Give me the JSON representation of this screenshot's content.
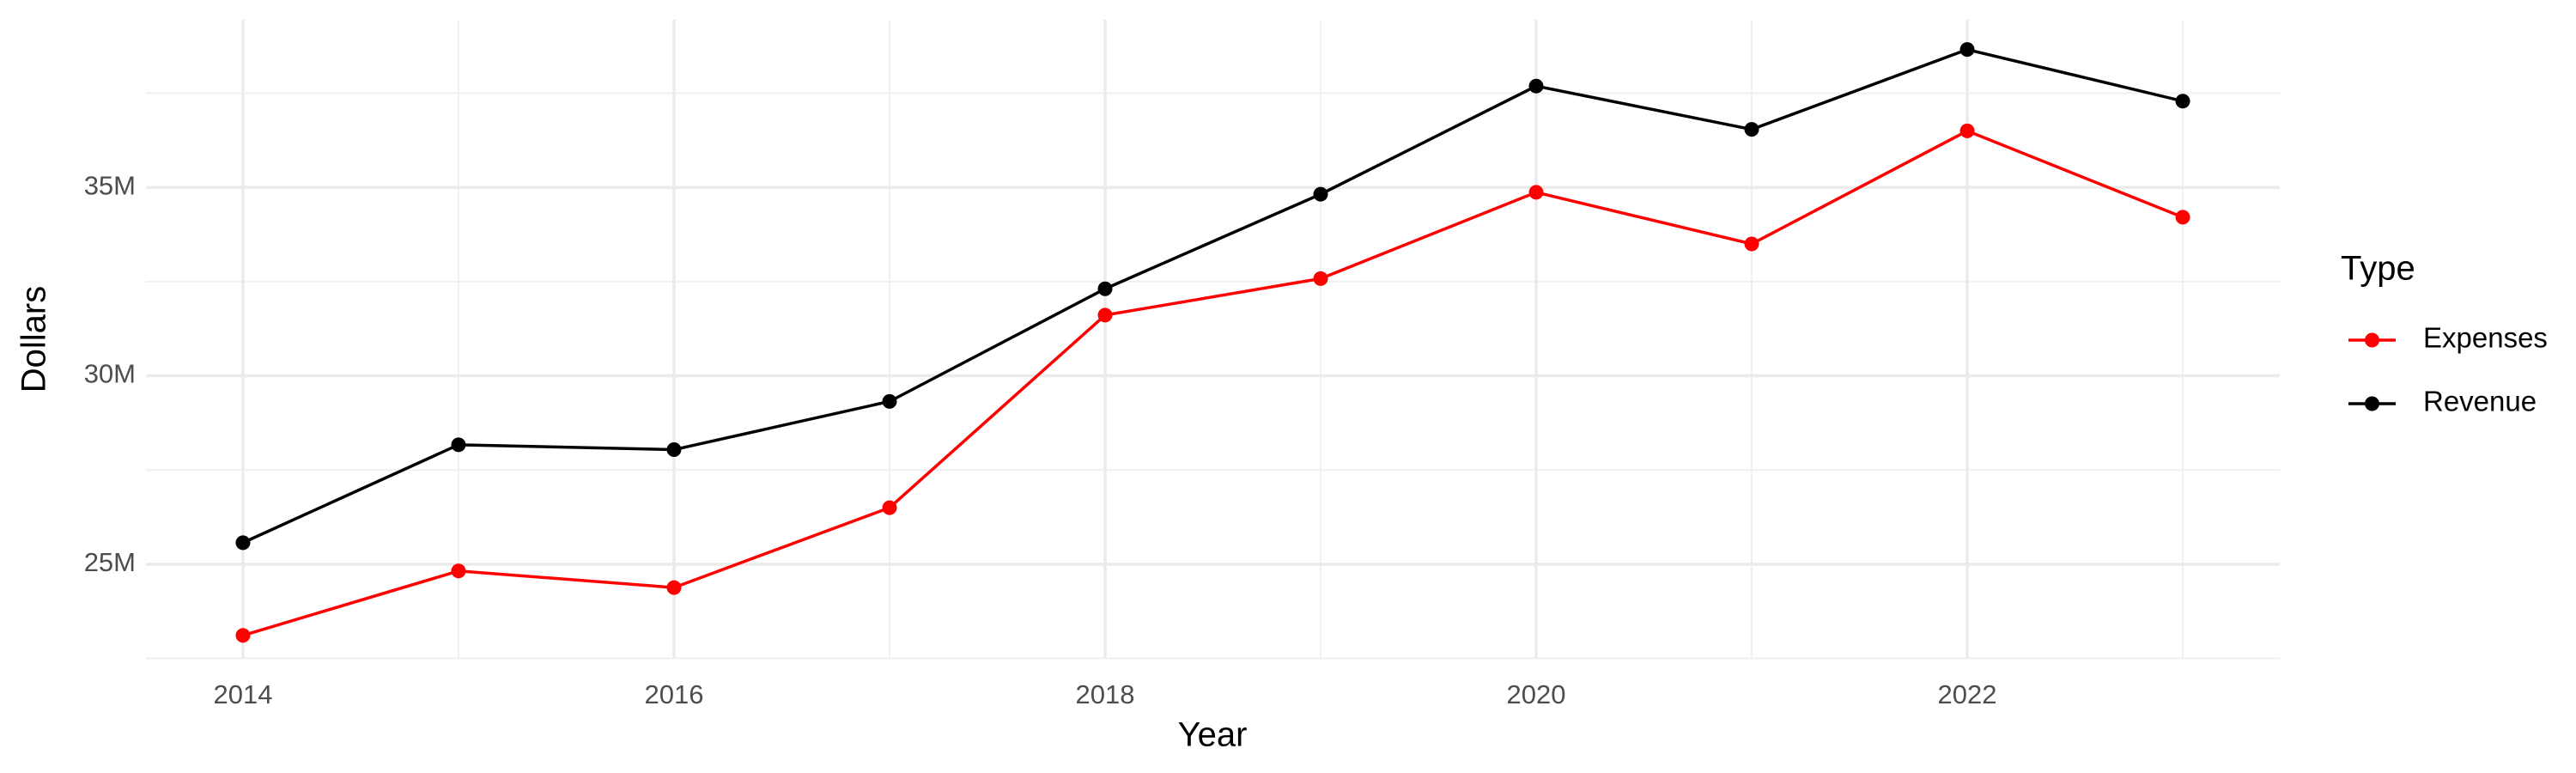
{
  "chart_data": {
    "type": "line",
    "x_label": "Year",
    "y_label": "Dollars",
    "legend_title": "Type",
    "x": [
      2014,
      2015,
      2016,
      2017,
      2018,
      2019,
      2020,
      2021,
      2022,
      2023
    ],
    "series": [
      {
        "name": "Expenses",
        "color": "#ff0000",
        "values": [
          23110000,
          24820000,
          24380000,
          26500000,
          31610000,
          32580000,
          34870000,
          33500000,
          36500000,
          34210000
        ]
      },
      {
        "name": "Revenue",
        "color": "#000000",
        "values": [
          25570000,
          28170000,
          28040000,
          29320000,
          32310000,
          34820000,
          37690000,
          36540000,
          38660000,
          37290000
        ]
      }
    ],
    "xlim": [
      2013.55,
      2023.45
    ],
    "xticks": [
      2014,
      2016,
      2018,
      2020,
      2022
    ],
    "ylim": [
      22490000,
      39450000
    ],
    "yticks": [
      {
        "value": 25000000,
        "label": "25M"
      },
      {
        "value": 30000000,
        "label": "30M"
      },
      {
        "value": 35000000,
        "label": "35M"
      }
    ],
    "grid": true,
    "legend": "right"
  }
}
